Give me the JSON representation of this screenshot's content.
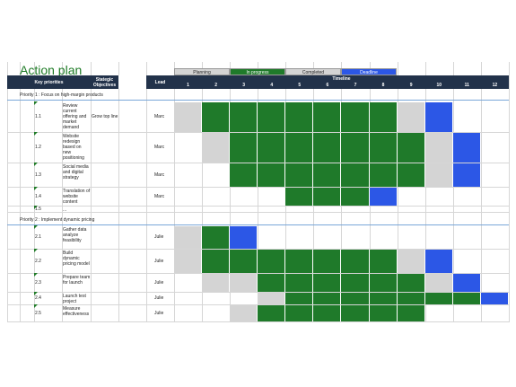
{
  "title": "Action plan",
  "legend": [
    {
      "label": "Planning",
      "color": "#d4d4d4",
      "text_color": "#222222"
    },
    {
      "label": "In progress",
      "color": "#1f7a2a",
      "text_color": "#ffffff"
    },
    {
      "label": "Completed",
      "color": "#d4d4d4",
      "text_color": "#222222"
    },
    {
      "label": "Deadline",
      "color": "#2c57e6",
      "text_color": "#ffffff"
    }
  ],
  "headers": {
    "key_priorities": "Key priorities",
    "strategic_objectives": "Stategic Objectives",
    "lead": "Lead",
    "timeline": "Timeline"
  },
  "weeks": [
    "1",
    "2",
    "3",
    "4",
    "5",
    "6",
    "7",
    "8",
    "9",
    "10",
    "11",
    "12"
  ],
  "colors": {
    "planning": "#d4d4d4",
    "progress": "#1f7a2a",
    "deadline": "#2c57e6",
    "header": "#22324a"
  },
  "priorities": [
    {
      "label": "Priority 1 : Focus on high-margin products",
      "tasks": [
        {
          "num": "1.1",
          "text": "Review current offering and market demand",
          "objective": "Grow top line",
          "lead": "Marc",
          "cells": [
            "P",
            "G",
            "G",
            "G",
            "G",
            "G",
            "G",
            "G",
            "P",
            "D",
            "",
            ""
          ]
        },
        {
          "num": "1.2",
          "text": "Website redesign based on new positioning",
          "objective": "",
          "lead": "Marc",
          "cells": [
            "",
            "P",
            "G",
            "G",
            "G",
            "G",
            "G",
            "G",
            "G",
            "P",
            "D",
            ""
          ]
        },
        {
          "num": "1.3",
          "text": "Social media and digital strategy",
          "objective": "",
          "lead": "Marc",
          "cells": [
            "",
            "",
            "G",
            "G",
            "G",
            "G",
            "G",
            "G",
            "G",
            "P",
            "D",
            ""
          ]
        },
        {
          "num": "1.4",
          "text": "Translation of website content",
          "objective": "",
          "lead": "Marc",
          "cells": [
            "",
            "",
            "",
            "",
            "G",
            "G",
            "G",
            "D",
            "",
            "",
            "",
            ""
          ]
        },
        {
          "num": "1.5",
          "text": "...",
          "objective": "",
          "lead": "",
          "cells": [
            "",
            "",
            "",
            "",
            "",
            "",
            "",
            "",
            "",
            "",
            "",
            ""
          ]
        }
      ]
    },
    {
      "label": "Priority 2 : Implement dynamic pricing",
      "tasks": [
        {
          "num": "2.1",
          "text": "Gather data analyze feasibility",
          "objective": "",
          "lead": "Julie",
          "cells": [
            "P",
            "G",
            "D",
            "",
            "",
            "",
            "",
            "",
            "",
            "",
            "",
            ""
          ]
        },
        {
          "num": "2.2",
          "text": "Build dynamic pricing model",
          "objective": "",
          "lead": "Julie",
          "cells": [
            "P",
            "G",
            "G",
            "G",
            "G",
            "G",
            "G",
            "G",
            "P",
            "D",
            "",
            ""
          ]
        },
        {
          "num": "2.3",
          "text": "Prepare team for launch",
          "objective": "",
          "lead": "Julie",
          "cells": [
            "",
            "P",
            "P",
            "G",
            "G",
            "G",
            "G",
            "G",
            "G",
            "P",
            "D",
            ""
          ]
        },
        {
          "num": "2.4",
          "text": "Launch test project",
          "objective": "",
          "lead": "Julie",
          "cells": [
            "",
            "",
            "",
            "P",
            "G",
            "G",
            "G",
            "G",
            "G",
            "G",
            "G",
            "D"
          ]
        },
        {
          "num": "2.5",
          "text": "Measure effectiveness",
          "objective": "",
          "lead": "Julie",
          "cells": [
            "",
            "",
            "P",
            "G",
            "G",
            "G",
            "G",
            "G",
            "G",
            "",
            "",
            ""
          ]
        }
      ]
    }
  ]
}
